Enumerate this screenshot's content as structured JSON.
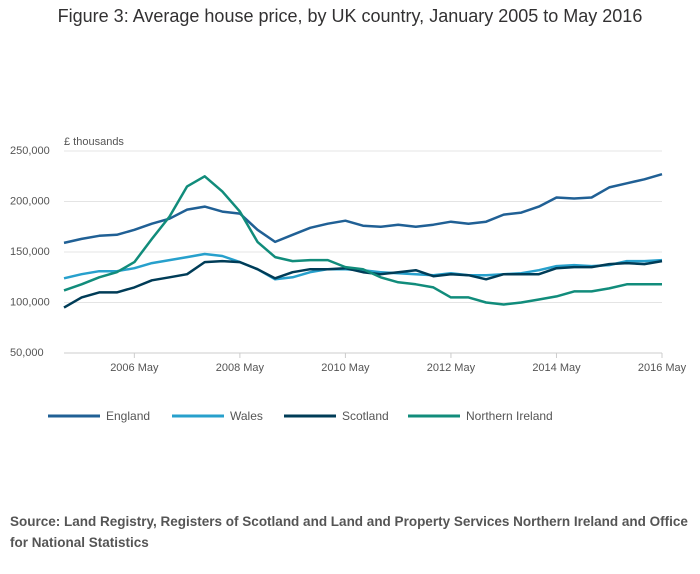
{
  "chart_data": {
    "type": "line",
    "title": "Figure 3: Average house price, by UK country, January 2005 to May 2016",
    "y_label": "£ thousands",
    "source": "Source: Land Registry, Registers of Scotland and Land and Property Services Northern Ireland and Office for National Statistics",
    "x": [
      "2005-01",
      "2005-05",
      "2005-09",
      "2006-01",
      "2006-05",
      "2006-09",
      "2007-01",
      "2007-05",
      "2007-09",
      "2008-01",
      "2008-05",
      "2008-09",
      "2009-01",
      "2009-05",
      "2009-09",
      "2010-01",
      "2010-05",
      "2010-09",
      "2011-01",
      "2011-05",
      "2011-09",
      "2012-01",
      "2012-05",
      "2012-09",
      "2013-01",
      "2013-05",
      "2013-09",
      "2014-01",
      "2014-05",
      "2014-09",
      "2015-01",
      "2015-05",
      "2015-09",
      "2016-01",
      "2016-05"
    ],
    "xlim": [
      "2005-01",
      "2016-05"
    ],
    "xticks": [
      {
        "value": "2006-05",
        "label": "2006 May"
      },
      {
        "value": "2008-05",
        "label": "2008 May"
      },
      {
        "value": "2010-05",
        "label": "2010 May"
      },
      {
        "value": "2012-05",
        "label": "2012 May"
      },
      {
        "value": "2014-05",
        "label": "2014 May"
      },
      {
        "value": "2016-05",
        "label": "2016 May"
      }
    ],
    "ylim": [
      50000,
      250000
    ],
    "yticks": [
      {
        "value": 50000,
        "label": "50,000"
      },
      {
        "value": 100000,
        "label": "100,000"
      },
      {
        "value": 150000,
        "label": "150,000"
      },
      {
        "value": 200000,
        "label": "200,000"
      },
      {
        "value": 250000,
        "label": "250,000"
      }
    ],
    "grid": true,
    "legend": "bottom",
    "series": [
      {
        "name": "England",
        "color": "#206095",
        "values": [
          159000,
          163000,
          166000,
          167000,
          172000,
          178000,
          183000,
          192000,
          195000,
          190000,
          188000,
          172000,
          160000,
          167000,
          174000,
          178000,
          181000,
          176000,
          175000,
          177000,
          175000,
          177000,
          180000,
          178000,
          180000,
          187000,
          189000,
          195000,
          204000,
          203000,
          204000,
          214000,
          218000,
          222000,
          227000
        ]
      },
      {
        "name": "Wales",
        "color": "#27a0cc",
        "values": [
          124000,
          128000,
          131000,
          131000,
          134000,
          139000,
          142000,
          145000,
          148000,
          146000,
          140000,
          133000,
          123000,
          125000,
          130000,
          133000,
          133000,
          132000,
          130000,
          129000,
          128000,
          127000,
          129000,
          127000,
          127000,
          128000,
          129000,
          132000,
          136000,
          137000,
          136000,
          137000,
          141000,
          141000,
          142000
        ]
      },
      {
        "name": "Scotland",
        "color": "#003c57",
        "values": [
          95000,
          105000,
          110000,
          110000,
          115000,
          122000,
          125000,
          128000,
          140000,
          141000,
          140000,
          133000,
          124000,
          130000,
          133000,
          133000,
          134000,
          130000,
          128000,
          130000,
          132000,
          126000,
          128000,
          127000,
          123000,
          128000,
          128000,
          128000,
          134000,
          135000,
          135000,
          138000,
          139000,
          138000,
          141000
        ]
      },
      {
        "name": "Northern Ireland",
        "color": "#118c7b",
        "values": [
          112000,
          118000,
          125000,
          130000,
          140000,
          163000,
          185000,
          215000,
          225000,
          210000,
          190000,
          160000,
          145000,
          141000,
          142000,
          142000,
          135000,
          133000,
          125000,
          120000,
          118000,
          115000,
          105000,
          105000,
          100000,
          98000,
          100000,
          103000,
          106000,
          111000,
          111000,
          114000,
          118000,
          118000,
          118000
        ]
      }
    ]
  }
}
